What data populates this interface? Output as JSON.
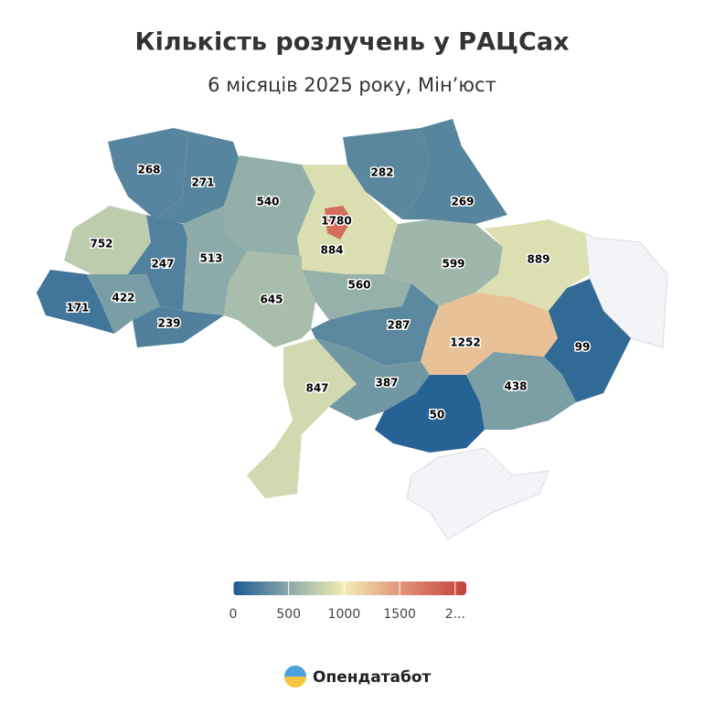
{
  "chart_data": {
    "type": "choropleth",
    "title": "Кількість розлучень у РАЦСах",
    "subtitle": "6 місяців 2025 року, Мін’юст",
    "values": [
      268,
      271,
      540,
      1780,
      884,
      282,
      269,
      752,
      247,
      513,
      171,
      422,
      239,
      645,
      560,
      599,
      889,
      287,
      1252,
      99,
      847,
      387,
      50,
      438
    ],
    "colorscale": [
      [
        0,
        "#1c5a92"
      ],
      [
        500,
        "#8aa9a8"
      ],
      [
        1000,
        "#f2eeb4"
      ],
      [
        1500,
        "#e1957a"
      ],
      [
        2100,
        "#c3413a"
      ]
    ],
    "clim": [
      0,
      2100
    ],
    "cticks": [
      0,
      500,
      1000,
      1500,
      {
        "value": 2000,
        "label": "2..."
      }
    ]
  },
  "footer": {
    "brand": "Опендатабот"
  }
}
